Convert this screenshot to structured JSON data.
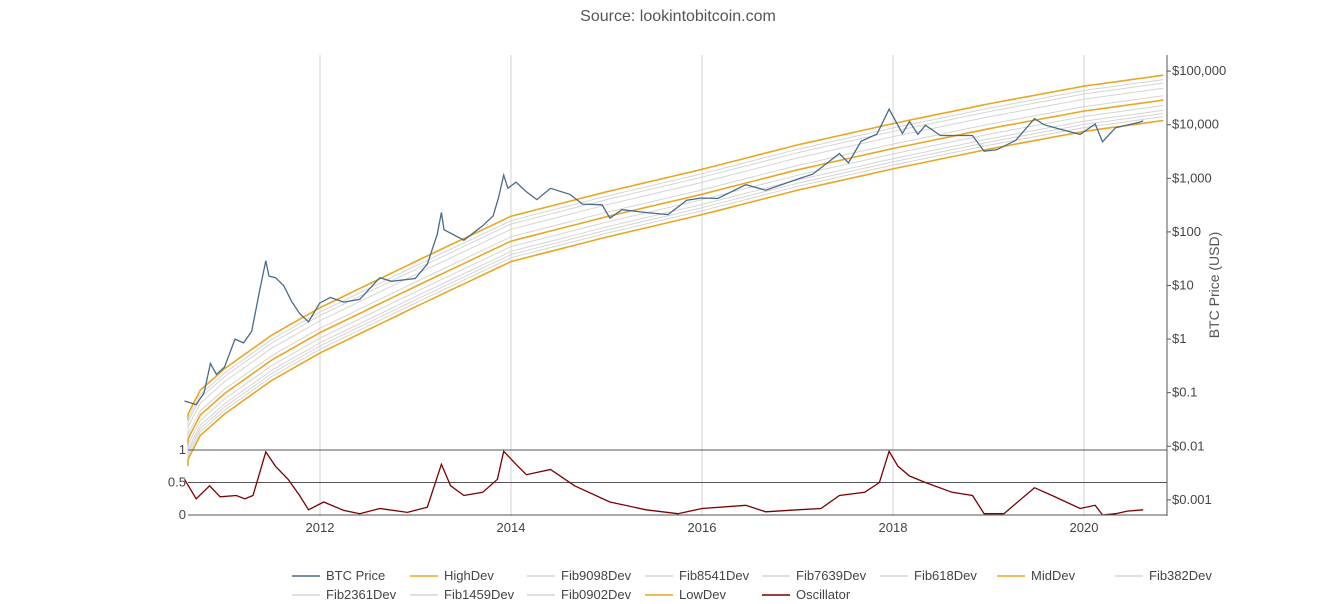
{
  "chart_data": {
    "type": "line",
    "title": "Source: lookintobitcoin.com",
    "ylabel": "BTC Price (USD)",
    "y_scale": "log",
    "ylim": [
      0.0005,
      200000
    ],
    "grid": "vertical",
    "legend_position": "bottom",
    "x_ticks": [
      "2012",
      "2014",
      "2016",
      "2018",
      "2020"
    ],
    "y_ticks": [
      {
        "value": 100000,
        "label": "$100,000"
      },
      {
        "value": 10000,
        "label": "$10,000"
      },
      {
        "value": 1000,
        "label": "$1,000"
      },
      {
        "value": 100,
        "label": "$100"
      },
      {
        "value": 10,
        "label": "$10"
      },
      {
        "value": 1,
        "label": "$1"
      },
      {
        "value": 0.1,
        "label": "$0.1"
      },
      {
        "value": 0.01,
        "label": "$0.01"
      },
      {
        "value": 0.001,
        "label": "$0.001"
      }
    ],
    "oscillator_ticks": [
      {
        "value": 1,
        "label": "1"
      },
      {
        "value": 0.5,
        "label": "0.5"
      },
      {
        "value": 0,
        "label": "0"
      }
    ],
    "band_multipliers": {
      "HighDev": 7.0,
      "Fib9098Dev": 5.8,
      "Fib8541Dev": 5.0,
      "Fib7639Dev": 4.0,
      "Fib618Dev": 2.9,
      "MidDev": 2.4,
      "Fib382Dev": 1.9,
      "Fib2361Dev": 1.55,
      "Fib1459Dev": 1.35,
      "Fib0902Dev": 1.18,
      "LowDev": 1.0
    },
    "series": [
      {
        "name": "BTC Price",
        "color": "#4a6a8a",
        "points": [
          [
            "2010-08-01",
            0.07
          ],
          [
            "2010-09-15",
            0.06
          ],
          [
            "2010-10-15",
            0.1
          ],
          [
            "2010-11-08",
            0.35
          ],
          [
            "2010-12-01",
            0.22
          ],
          [
            "2011-01-01",
            0.3
          ],
          [
            "2011-02-10",
            1.0
          ],
          [
            "2011-03-15",
            0.85
          ],
          [
            "2011-04-15",
            1.4
          ],
          [
            "2011-05-15",
            8.0
          ],
          [
            "2011-06-08",
            29.0
          ],
          [
            "2011-06-20",
            15.0
          ],
          [
            "2011-07-15",
            14.0
          ],
          [
            "2011-08-15",
            10.0
          ],
          [
            "2011-09-15",
            5.0
          ],
          [
            "2011-10-15",
            3.0
          ],
          [
            "2011-11-18",
            2.1
          ],
          [
            "2011-12-31",
            4.7
          ],
          [
            "2012-02-10",
            6.0
          ],
          [
            "2012-04-01",
            4.9
          ],
          [
            "2012-06-01",
            5.5
          ],
          [
            "2012-08-17",
            14.0
          ],
          [
            "2012-10-01",
            12.0
          ],
          [
            "2012-12-31",
            13.5
          ],
          [
            "2013-02-15",
            25.0
          ],
          [
            "2013-03-25",
            90.0
          ],
          [
            "2013-04-10",
            230.0
          ],
          [
            "2013-04-20",
            110.0
          ],
          [
            "2013-07-05",
            70.0
          ],
          [
            "2013-09-15",
            130.0
          ],
          [
            "2013-10-25",
            200.0
          ],
          [
            "2013-11-15",
            450.0
          ],
          [
            "2013-12-04",
            1150.0
          ],
          [
            "2013-12-20",
            650.0
          ],
          [
            "2014-01-20",
            850.0
          ],
          [
            "2014-03-01",
            560.0
          ],
          [
            "2014-04-10",
            400.0
          ],
          [
            "2014-06-01",
            650.0
          ],
          [
            "2014-08-15",
            500.0
          ],
          [
            "2014-10-01",
            330.0
          ],
          [
            "2014-12-15",
            320.0
          ],
          [
            "2015-01-14",
            180.0
          ],
          [
            "2015-03-01",
            260.0
          ],
          [
            "2015-06-01",
            230.0
          ],
          [
            "2015-08-24",
            210.0
          ],
          [
            "2015-11-04",
            390.0
          ],
          [
            "2015-12-31",
            430.0
          ],
          [
            "2016-03-01",
            420.0
          ],
          [
            "2016-06-17",
            760.0
          ],
          [
            "2016-09-01",
            600.0
          ],
          [
            "2016-12-31",
            960.0
          ],
          [
            "2017-03-01",
            1200.0
          ],
          [
            "2017-06-10",
            2900.0
          ],
          [
            "2017-07-15",
            1950.0
          ],
          [
            "2017-09-01",
            4900.0
          ],
          [
            "2017-11-01",
            6700.0
          ],
          [
            "2017-12-17",
            19500.0
          ],
          [
            "2018-02-06",
            6900.0
          ],
          [
            "2018-03-05",
            11500.0
          ],
          [
            "2018-04-06",
            6600.0
          ],
          [
            "2018-05-05",
            9800.0
          ],
          [
            "2018-07-01",
            6300.0
          ],
          [
            "2018-11-01",
            6300.0
          ],
          [
            "2018-12-15",
            3200.0
          ],
          [
            "2019-02-01",
            3400.0
          ],
          [
            "2019-04-15",
            5100.0
          ],
          [
            "2019-06-26",
            13000.0
          ],
          [
            "2019-08-01",
            10000.0
          ],
          [
            "2019-10-01",
            8300.0
          ],
          [
            "2019-12-17",
            6600.0
          ],
          [
            "2020-02-13",
            10300.0
          ],
          [
            "2020-03-12",
            4800.0
          ],
          [
            "2020-05-01",
            8800.0
          ],
          [
            "2020-06-01",
            9500.0
          ],
          [
            "2020-07-28",
            11000.0
          ],
          [
            "2020-08-15",
            11800.0
          ]
        ]
      },
      {
        "name": "HighDev",
        "color": "#e8a623"
      },
      {
        "name": "Fib9098Dev",
        "color": "#d5d5d5"
      },
      {
        "name": "Fib8541Dev",
        "color": "#d5d5d5"
      },
      {
        "name": "Fib7639Dev",
        "color": "#d5d5d5"
      },
      {
        "name": "Fib618Dev",
        "color": "#d5d5d5"
      },
      {
        "name": "MidDev",
        "color": "#e8a623"
      },
      {
        "name": "Fib382Dev",
        "color": "#d5d5d5"
      },
      {
        "name": "Fib2361Dev",
        "color": "#d5d5d5"
      },
      {
        "name": "Fib1459Dev",
        "color": "#d5d5d5"
      },
      {
        "name": "Fib0902Dev",
        "color": "#d5d5d5"
      },
      {
        "name": "LowDev",
        "color": "#e8a623",
        "points": [
          [
            "2010-08-01",
            0.0043
          ],
          [
            "2010-10-01",
            0.016
          ],
          [
            "2011-01-01",
            0.04
          ],
          [
            "2011-07-01",
            0.17
          ],
          [
            "2012-01-01",
            0.55
          ],
          [
            "2013-01-01",
            4.0
          ],
          [
            "2014-01-01",
            28.0
          ],
          [
            "2015-01-01",
            80.0
          ],
          [
            "2016-01-01",
            210.0
          ],
          [
            "2017-01-01",
            600.0
          ],
          [
            "2018-01-01",
            1500.0
          ],
          [
            "2019-01-01",
            3500.0
          ],
          [
            "2020-01-01",
            7500.0
          ],
          [
            "2020-10-31",
            12000.0
          ]
        ]
      },
      {
        "name": "Oscillator",
        "color": "#7a0000",
        "points": [
          [
            "2010-08-01",
            0.55
          ],
          [
            "2010-09-15",
            0.25
          ],
          [
            "2010-11-05",
            0.45
          ],
          [
            "2010-12-15",
            0.28
          ],
          [
            "2011-02-15",
            0.3
          ],
          [
            "2011-03-20",
            0.25
          ],
          [
            "2011-04-20",
            0.3
          ],
          [
            "2011-06-08",
            0.97
          ],
          [
            "2011-07-15",
            0.75
          ],
          [
            "2011-09-01",
            0.55
          ],
          [
            "2011-10-15",
            0.3
          ],
          [
            "2011-11-18",
            0.08
          ],
          [
            "2012-01-15",
            0.2
          ],
          [
            "2012-04-01",
            0.07
          ],
          [
            "2012-06-01",
            0.02
          ],
          [
            "2012-08-17",
            0.1
          ],
          [
            "2012-12-01",
            0.04
          ],
          [
            "2013-02-15",
            0.12
          ],
          [
            "2013-04-10",
            0.78
          ],
          [
            "2013-05-15",
            0.45
          ],
          [
            "2013-07-05",
            0.3
          ],
          [
            "2013-09-15",
            0.35
          ],
          [
            "2013-11-10",
            0.55
          ],
          [
            "2013-12-04",
            0.98
          ],
          [
            "2014-01-20",
            0.78
          ],
          [
            "2014-03-01",
            0.62
          ],
          [
            "2014-06-01",
            0.7
          ],
          [
            "2014-09-01",
            0.45
          ],
          [
            "2015-01-14",
            0.2
          ],
          [
            "2015-06-01",
            0.08
          ],
          [
            "2015-10-01",
            0.02
          ],
          [
            "2016-01-01",
            0.1
          ],
          [
            "2016-06-17",
            0.15
          ],
          [
            "2016-09-01",
            0.05
          ],
          [
            "2017-01-01",
            0.08
          ],
          [
            "2017-04-01",
            0.1
          ],
          [
            "2017-06-10",
            0.3
          ],
          [
            "2017-09-15",
            0.35
          ],
          [
            "2017-11-10",
            0.5
          ],
          [
            "2017-12-17",
            0.98
          ],
          [
            "2018-01-20",
            0.75
          ],
          [
            "2018-03-05",
            0.6
          ],
          [
            "2018-05-05",
            0.5
          ],
          [
            "2018-08-15",
            0.35
          ],
          [
            "2018-11-01",
            0.3
          ],
          [
            "2018-12-15",
            0.02
          ],
          [
            "2019-03-01",
            0.02
          ],
          [
            "2019-06-26",
            0.42
          ],
          [
            "2019-09-01",
            0.3
          ],
          [
            "2019-12-17",
            0.1
          ],
          [
            "2020-02-13",
            0.15
          ],
          [
            "2020-03-12",
            0.0
          ],
          [
            "2020-05-01",
            0.02
          ],
          [
            "2020-06-15",
            0.06
          ],
          [
            "2020-08-15",
            0.08
          ]
        ]
      }
    ]
  }
}
